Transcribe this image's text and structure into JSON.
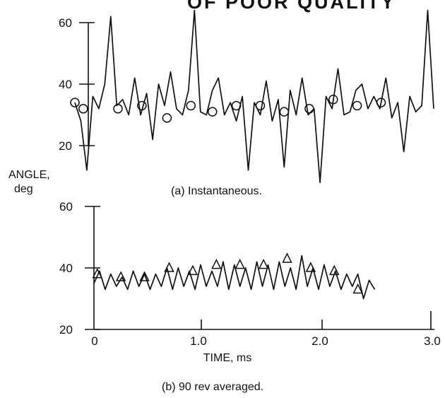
{
  "header_text": "OF POOR QUALITY",
  "ylabel": "ANGLE,",
  "ylabel_unit": "deg",
  "xlabel": "TIME, ms",
  "chart_data": [
    {
      "type": "line",
      "caption": "(a) Instantaneous.",
      "ylim": [
        20,
        60
      ],
      "yticks": [
        20,
        40,
        60
      ],
      "xlim": [
        0,
        3.0
      ],
      "x": [
        0.0,
        0.05,
        0.1,
        0.15,
        0.2,
        0.25,
        0.3,
        0.35,
        0.4,
        0.45,
        0.5,
        0.55,
        0.6,
        0.65,
        0.7,
        0.75,
        0.8,
        0.85,
        0.9,
        0.95,
        1.0,
        1.05,
        1.1,
        1.15,
        1.2,
        1.25,
        1.3,
        1.35,
        1.4,
        1.45,
        1.5,
        1.55,
        1.6,
        1.65,
        1.7,
        1.75,
        1.8,
        1.85,
        1.9,
        1.95,
        2.0,
        2.05,
        2.1,
        2.15,
        2.2,
        2.25,
        2.3,
        2.35,
        2.4,
        2.45,
        2.5,
        2.55,
        2.6,
        2.65,
        2.7,
        2.75,
        2.8,
        2.85,
        2.9,
        2.95,
        3.0
      ],
      "y": [
        34,
        28,
        12,
        36,
        32,
        40,
        62,
        33,
        35,
        30,
        42,
        30,
        37,
        22,
        40,
        33,
        44,
        32,
        30,
        38,
        64,
        31,
        30,
        38,
        42,
        30,
        34,
        28,
        36,
        12,
        34,
        30,
        41,
        28,
        35,
        13,
        38,
        30,
        42,
        30,
        32,
        8,
        36,
        32,
        45,
        30,
        31,
        38,
        40,
        32,
        36,
        32,
        42,
        29,
        34,
        18,
        36,
        31,
        33,
        64,
        32
      ],
      "markers": [
        {
          "x": 0.0,
          "y": 34
        },
        {
          "x": 0.07,
          "y": 32
        },
        {
          "x": 0.36,
          "y": 32
        },
        {
          "x": 0.56,
          "y": 33
        },
        {
          "x": 0.77,
          "y": 29
        },
        {
          "x": 0.97,
          "y": 33
        },
        {
          "x": 1.15,
          "y": 31
        },
        {
          "x": 1.35,
          "y": 33
        },
        {
          "x": 1.55,
          "y": 33
        },
        {
          "x": 1.75,
          "y": 31
        },
        {
          "x": 1.96,
          "y": 32
        },
        {
          "x": 2.16,
          "y": 35
        },
        {
          "x": 2.36,
          "y": 33
        },
        {
          "x": 2.56,
          "y": 34
        }
      ],
      "marker_symbol": "circle"
    },
    {
      "type": "line",
      "caption": "(b) 90 rev averaged.",
      "ylim": [
        20,
        60
      ],
      "yticks": [
        20,
        40,
        60
      ],
      "xlim": [
        0,
        3.0
      ],
      "xticks": [
        "0",
        "1.0",
        "2.0",
        "3.0"
      ],
      "x": [
        0.0,
        0.05,
        0.1,
        0.15,
        0.2,
        0.25,
        0.3,
        0.35,
        0.4,
        0.45,
        0.5,
        0.55,
        0.6,
        0.65,
        0.7,
        0.75,
        0.8,
        0.85,
        0.9,
        0.95,
        1.0,
        1.05,
        1.1,
        1.15,
        1.2,
        1.25,
        1.3,
        1.35,
        1.4,
        1.45,
        1.5,
        1.55,
        1.6,
        1.65,
        1.7,
        1.75,
        1.8,
        1.85,
        1.9,
        1.95,
        2.0,
        2.05,
        2.1,
        2.15,
        2.2,
        2.25,
        2.3,
        2.35,
        2.4,
        2.45,
        2.5
      ],
      "y": [
        35,
        39,
        33,
        38,
        34,
        37,
        33,
        39,
        34,
        38,
        33,
        38,
        34,
        40,
        33,
        40,
        34,
        39,
        33,
        41,
        34,
        39,
        34,
        42,
        33,
        41,
        34,
        40,
        33,
        42,
        34,
        41,
        33,
        42,
        34,
        40,
        33,
        44,
        34,
        40,
        33,
        41,
        34,
        39,
        33,
        38,
        34,
        38,
        30,
        36,
        33
      ],
      "markers": [
        {
          "x": 0.03,
          "y": 38
        },
        {
          "x": 0.24,
          "y": 37
        },
        {
          "x": 0.45,
          "y": 37
        },
        {
          "x": 0.67,
          "y": 40
        },
        {
          "x": 0.88,
          "y": 39
        },
        {
          "x": 1.09,
          "y": 41
        },
        {
          "x": 1.3,
          "y": 41
        },
        {
          "x": 1.51,
          "y": 41
        },
        {
          "x": 1.72,
          "y": 43
        },
        {
          "x": 1.93,
          "y": 40
        },
        {
          "x": 2.14,
          "y": 39
        },
        {
          "x": 2.35,
          "y": 33
        }
      ],
      "marker_symbol": "triangle"
    }
  ]
}
